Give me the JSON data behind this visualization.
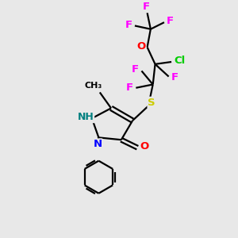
{
  "bg_color": "#e8e8e8",
  "atom_colors": {
    "F": "#ff00ff",
    "O": "#ff0000",
    "Cl": "#00cc00",
    "S": "#cccc00",
    "N": "#0000ff",
    "NH": "#008080",
    "C": "#000000",
    "=O": "#ff0000"
  },
  "bond_color": "#000000",
  "bond_width": 1.6,
  "fig_w": 3.0,
  "fig_h": 3.0,
  "dpi": 100
}
